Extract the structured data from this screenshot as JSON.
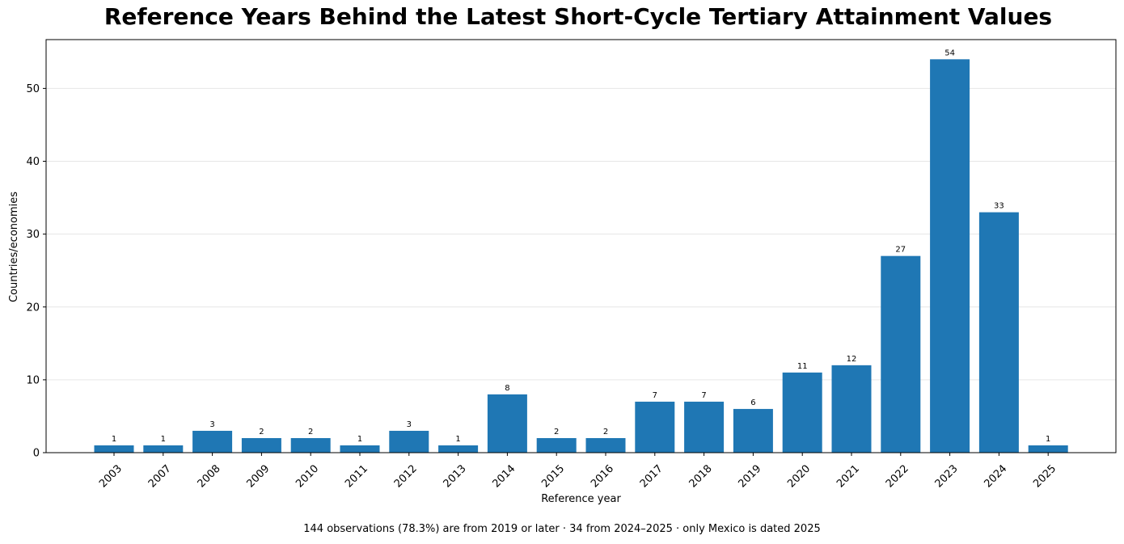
{
  "chart_data": {
    "type": "bar",
    "title": "Reference Years Behind the Latest Short-Cycle Tertiary Attainment Values",
    "xlabel": "Reference year",
    "ylabel": "Countries/economies",
    "categories": [
      "2003",
      "2007",
      "2008",
      "2009",
      "2010",
      "2011",
      "2012",
      "2013",
      "2014",
      "2015",
      "2016",
      "2017",
      "2018",
      "2019",
      "2020",
      "2021",
      "2022",
      "2023",
      "2024",
      "2025"
    ],
    "values": [
      1,
      1,
      3,
      2,
      2,
      1,
      3,
      1,
      8,
      2,
      2,
      7,
      7,
      6,
      11,
      12,
      27,
      54,
      33,
      1
    ],
    "ylim": [
      0,
      56.7
    ],
    "yticks": [
      0,
      10,
      20,
      30,
      40,
      50
    ],
    "grid": "horizontal",
    "bar_color": "#1f77b4",
    "footnote": "144 observations (78.3%) are from 2019 or later · 34 from 2024–2025 · only Mexico is dated 2025"
  }
}
